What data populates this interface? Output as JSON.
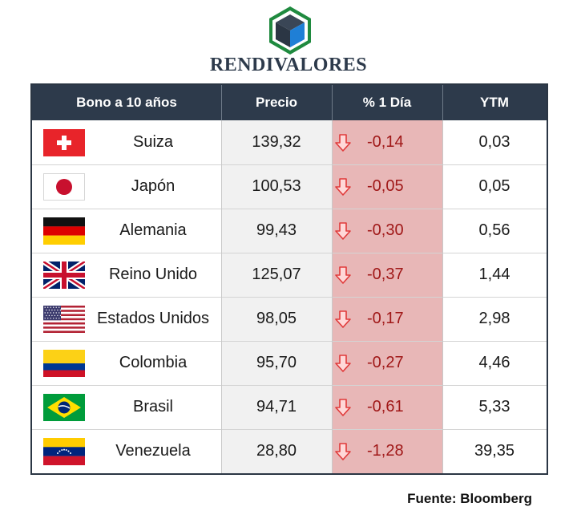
{
  "header": {
    "brand": "RENDIVALORES",
    "logo": "cube-logo-icon"
  },
  "chart_data": {
    "type": "table",
    "columns": [
      "Bono a 10 años",
      "Precio",
      "% 1 Día",
      "YTM"
    ],
    "rows": [
      {
        "country": "Suiza",
        "flag": "switzerland-flag-icon",
        "price": "139,32",
        "change": "-0,14",
        "ytm": "0,03"
      },
      {
        "country": "Japón",
        "flag": "japan-flag-icon",
        "price": "100,53",
        "change": "-0,05",
        "ytm": "0,05"
      },
      {
        "country": "Alemania",
        "flag": "germany-flag-icon",
        "price": "99,43",
        "change": "-0,30",
        "ytm": "0,56"
      },
      {
        "country": "Reino Unido",
        "flag": "united-kingdom-flag-icon",
        "price": "125,07",
        "change": "-0,37",
        "ytm": "1,44"
      },
      {
        "country": "Estados Unidos",
        "flag": "united-states-flag-icon",
        "price": "98,05",
        "change": "-0,17",
        "ytm": "2,98"
      },
      {
        "country": "Colombia",
        "flag": "colombia-flag-icon",
        "price": "95,70",
        "change": "-0,27",
        "ytm": "4,46"
      },
      {
        "country": "Brasil",
        "flag": "brazil-flag-icon",
        "price": "94,71",
        "change": "-0,61",
        "ytm": "5,33"
      },
      {
        "country": "Venezuela",
        "flag": "venezuela-flag-icon",
        "price": "28,80",
        "change": "-1,28",
        "ytm": "39,35"
      }
    ]
  },
  "footer": {
    "source": "Fuente: Bloomberg"
  },
  "colors": {
    "header_bg": "#2d3a4b",
    "change_bg": "#e8b7b7",
    "down_arrow": "#e03a3a",
    "down_text": "#a01818"
  }
}
